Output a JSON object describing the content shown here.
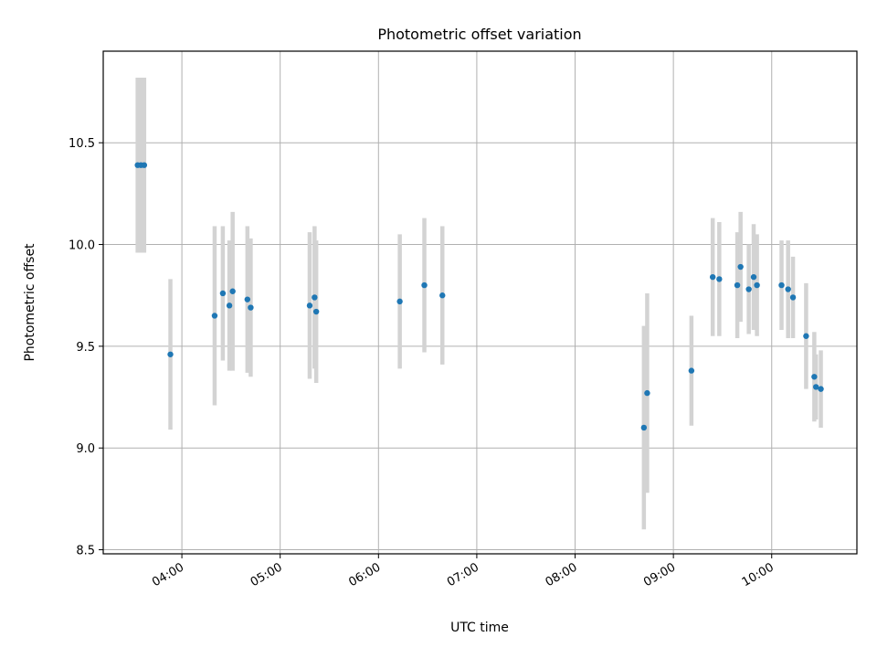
{
  "chart_data": {
    "type": "scatter",
    "title": "Photometric offset variation",
    "xlabel": "UTC time",
    "ylabel": "Photometric offset",
    "x_tick_labels": [
      "04:00",
      "05:00",
      "06:00",
      "07:00",
      "08:00",
      "09:00",
      "10:00"
    ],
    "y_tick_labels": [
      "8.5",
      "9.0",
      "9.5",
      "10.0",
      "10.5"
    ],
    "y_ticks": [
      8.5,
      9.0,
      9.5,
      10.0,
      10.5
    ],
    "xlim": [
      "03:12",
      "10:52"
    ],
    "ylim": [
      8.48,
      10.95
    ],
    "grid": true,
    "marker_color": "#1f77b4",
    "errorbar_color": "#d3d3d3",
    "points": [
      {
        "t": "03:33",
        "y": 10.39,
        "err": 0.43
      },
      {
        "t": "03:35",
        "y": 10.39,
        "err": 0.43
      },
      {
        "t": "03:37",
        "y": 10.39,
        "err": 0.43
      },
      {
        "t": "03:53",
        "y": 9.46,
        "err": 0.37
      },
      {
        "t": "04:20",
        "y": 9.65,
        "err": 0.44
      },
      {
        "t": "04:25",
        "y": 9.76,
        "err": 0.33
      },
      {
        "t": "04:29",
        "y": 9.7,
        "err": 0.32
      },
      {
        "t": "04:31",
        "y": 9.77,
        "err": 0.39
      },
      {
        "t": "04:40",
        "y": 9.73,
        "err": 0.36
      },
      {
        "t": "04:42",
        "y": 9.69,
        "err": 0.34
      },
      {
        "t": "05:18",
        "y": 9.7,
        "err": 0.36
      },
      {
        "t": "05:21",
        "y": 9.74,
        "err": 0.35
      },
      {
        "t": "05:22",
        "y": 9.67,
        "err": 0.35
      },
      {
        "t": "06:13",
        "y": 9.72,
        "err": 0.33
      },
      {
        "t": "06:28",
        "y": 9.8,
        "err": 0.33
      },
      {
        "t": "06:39",
        "y": 9.75,
        "err": 0.34
      },
      {
        "t": "08:42",
        "y": 9.1,
        "err": 0.5
      },
      {
        "t": "08:44",
        "y": 9.27,
        "err": 0.49
      },
      {
        "t": "09:11",
        "y": 9.38,
        "err": 0.27
      },
      {
        "t": "09:24",
        "y": 9.84,
        "err": 0.29
      },
      {
        "t": "09:28",
        "y": 9.83,
        "err": 0.28
      },
      {
        "t": "09:39",
        "y": 9.8,
        "err": 0.26
      },
      {
        "t": "09:41",
        "y": 9.89,
        "err": 0.27
      },
      {
        "t": "09:46",
        "y": 9.78,
        "err": 0.22
      },
      {
        "t": "09:49",
        "y": 9.84,
        "err": 0.26
      },
      {
        "t": "09:51",
        "y": 9.8,
        "err": 0.25
      },
      {
        "t": "10:06",
        "y": 9.8,
        "err": 0.22
      },
      {
        "t": "10:10",
        "y": 9.78,
        "err": 0.24
      },
      {
        "t": "10:13",
        "y": 9.74,
        "err": 0.2
      },
      {
        "t": "10:21",
        "y": 9.55,
        "err": 0.26
      },
      {
        "t": "10:26",
        "y": 9.35,
        "err": 0.22
      },
      {
        "t": "10:27",
        "y": 9.3,
        "err": 0.16
      },
      {
        "t": "10:30",
        "y": 9.29,
        "err": 0.19
      }
    ]
  }
}
